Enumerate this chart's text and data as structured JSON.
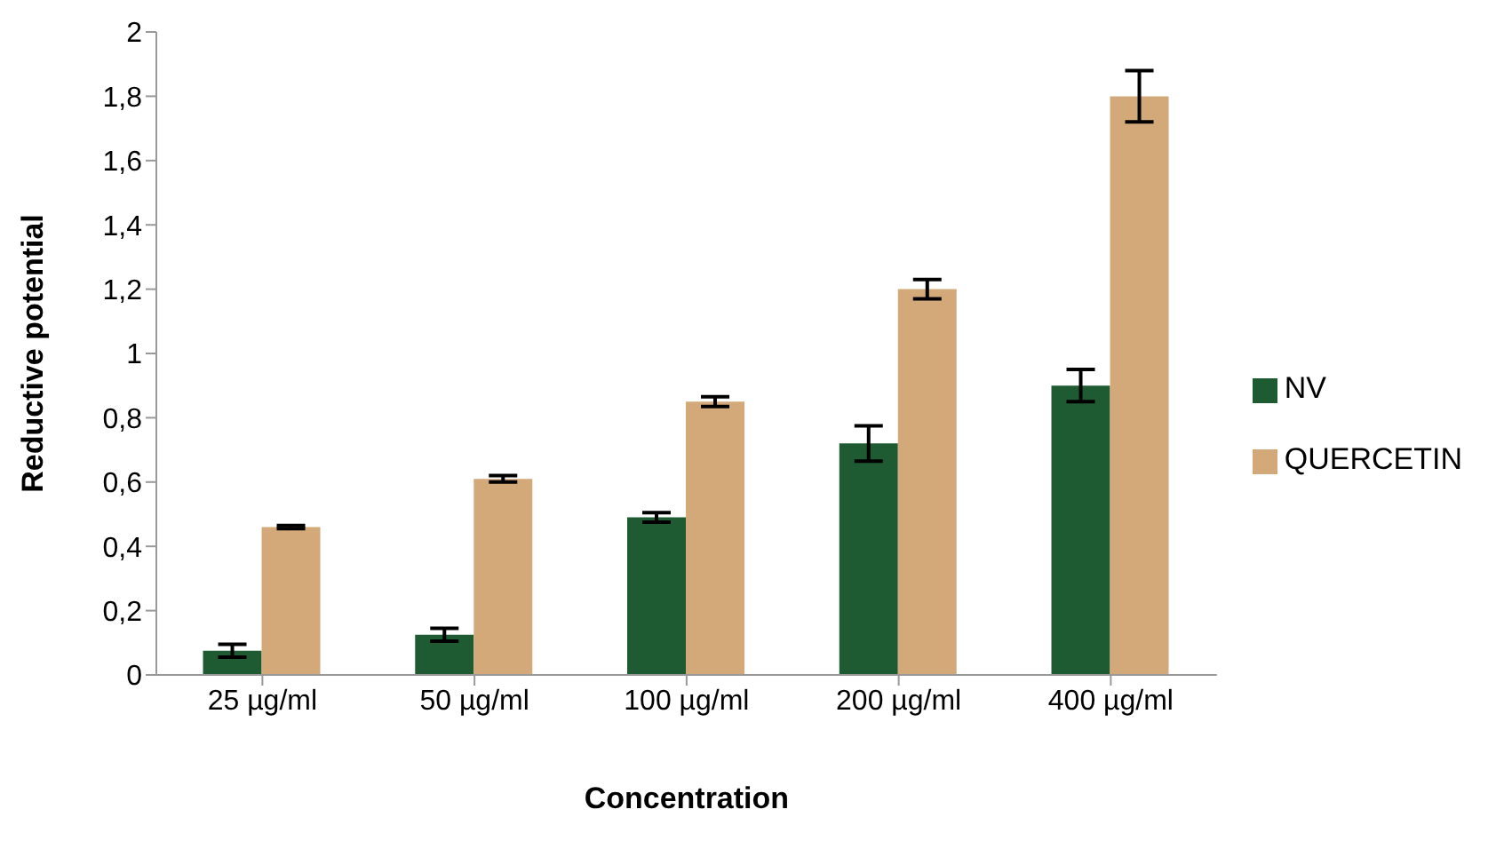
{
  "chart_data": {
    "type": "bar",
    "xlabel": "Concentration",
    "ylabel": "Reductive potential",
    "categories": [
      "25 µg/ml",
      "50 µg/ml",
      "100 µg/ml",
      "200 µg/ml",
      "400 µg/ml"
    ],
    "series": [
      {
        "name": "NV",
        "color": "#1e5a32",
        "values": [
          0.075,
          0.125,
          0.49,
          0.72,
          0.9
        ],
        "errors": [
          0.02,
          0.02,
          0.015,
          0.055,
          0.05
        ]
      },
      {
        "name": "QUERCETIN",
        "color": "#d4a97a",
        "values": [
          0.46,
          0.61,
          0.85,
          1.2,
          1.8
        ],
        "errors": [
          0.005,
          0.01,
          0.015,
          0.03,
          0.08
        ]
      }
    ],
    "ylim": [
      0,
      2
    ],
    "yticks": [
      0,
      {
        "value": 0.2,
        "label": "0,2"
      },
      {
        "value": 0.4,
        "label": "0,4"
      },
      {
        "value": 0.6,
        "label": "0,6"
      },
      {
        "value": 0.8,
        "label": "0,8"
      },
      1,
      {
        "value": 1.2,
        "label": "1,2"
      },
      {
        "value": 1.4,
        "label": "1,4"
      },
      {
        "value": 1.6,
        "label": "1,6"
      },
      {
        "value": 1.8,
        "label": "1,8"
      },
      2
    ],
    "grid": false,
    "legend": "right"
  }
}
